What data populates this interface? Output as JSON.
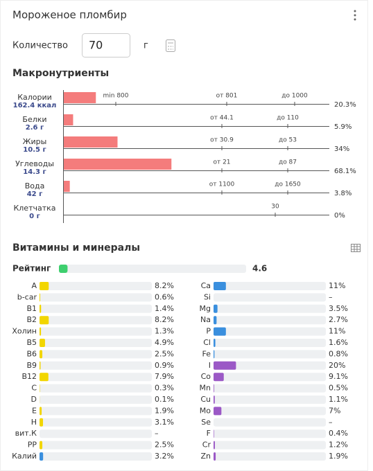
{
  "header": {
    "title": "Мороженое пломбир"
  },
  "quantity": {
    "label": "Количество",
    "value": "70",
    "unit": "г"
  },
  "macros": {
    "title": "Макронутриенты",
    "color": "#f47c7c",
    "rows": [
      {
        "name": "Калории",
        "amount": "162.4 ккал",
        "value": 20.3,
        "value_label": "20.3%",
        "markers": [
          "min 800",
          "от 801",
          "до 1000"
        ]
      },
      {
        "name": "Белки",
        "amount": "2.6 г",
        "value": 5.9,
        "value_label": "5.9%",
        "markers": [
          "от 44.1",
          "до 110"
        ]
      },
      {
        "name": "Жиры",
        "amount": "10.5 г",
        "value": 34,
        "value_label": "34%",
        "markers": [
          "от 30.9",
          "до 53"
        ]
      },
      {
        "name": "Углеводы",
        "amount": "14.3 г",
        "value": 68.1,
        "value_label": "68.1%",
        "markers": [
          "от 21",
          "до 87"
        ]
      },
      {
        "name": "Вода",
        "amount": "42 г",
        "value": 3.8,
        "value_label": "3.8%",
        "markers": [
          "от 1100",
          "до 1650"
        ]
      },
      {
        "name": "Клетчатка",
        "amount": "0 г",
        "value": 0,
        "value_label": "0%",
        "markers": [
          "30"
        ]
      }
    ]
  },
  "vitamins": {
    "title": "Витамины и минералы",
    "rating": {
      "label": "Рейтинг",
      "value": 4.6,
      "color": "#3ecf6e"
    },
    "left": [
      {
        "name": "A",
        "value": 8.2,
        "value_label": "8.2%",
        "color": "#f2d600"
      },
      {
        "name": "b-car",
        "value": 0.6,
        "value_label": "0.6%",
        "color": "#f2d600"
      },
      {
        "name": "B1",
        "value": 1.4,
        "value_label": "1.4%",
        "color": "#f2d600"
      },
      {
        "name": "B2",
        "value": 8.2,
        "value_label": "8.2%",
        "color": "#f2d600"
      },
      {
        "name": "Холин",
        "value": 1.3,
        "value_label": "1.3%",
        "color": "#f2d600"
      },
      {
        "name": "B5",
        "value": 4.9,
        "value_label": "4.9%",
        "color": "#f2d600"
      },
      {
        "name": "B6",
        "value": 2.5,
        "value_label": "2.5%",
        "color": "#f2d600"
      },
      {
        "name": "B9",
        "value": 0.9,
        "value_label": "0.9%",
        "color": "#f2d600"
      },
      {
        "name": "B12",
        "value": 7.9,
        "value_label": "7.9%",
        "color": "#f2d600"
      },
      {
        "name": "C",
        "value": 0.3,
        "value_label": "0.3%",
        "color": "#f2d600"
      },
      {
        "name": "D",
        "value": 0.1,
        "value_label": "0.1%",
        "color": "#f2d600"
      },
      {
        "name": "E",
        "value": 1.9,
        "value_label": "1.9%",
        "color": "#f2d600"
      },
      {
        "name": "H",
        "value": 3.1,
        "value_label": "3.1%",
        "color": "#f2d600"
      },
      {
        "name": "вит.К",
        "value": null,
        "value_label": "–",
        "color": "#f2d600"
      },
      {
        "name": "PP",
        "value": 2.5,
        "value_label": "2.5%",
        "color": "#f2d600"
      },
      {
        "name": "Калий",
        "value": 3.2,
        "value_label": "3.2%",
        "color": "#3a8fde"
      }
    ],
    "right": [
      {
        "name": "Ca",
        "value": 11,
        "value_label": "11%",
        "color": "#3a8fde"
      },
      {
        "name": "Si",
        "value": null,
        "value_label": "–",
        "color": "#3a8fde"
      },
      {
        "name": "Mg",
        "value": 3.5,
        "value_label": "3.5%",
        "color": "#3a8fde"
      },
      {
        "name": "Na",
        "value": 2.7,
        "value_label": "2.7%",
        "color": "#3a8fde"
      },
      {
        "name": "P",
        "value": 11,
        "value_label": "11%",
        "color": "#3a8fde"
      },
      {
        "name": "Cl",
        "value": 1.6,
        "value_label": "1.6%",
        "color": "#3a8fde"
      },
      {
        "name": "Fe",
        "value": 0.8,
        "value_label": "0.8%",
        "color": "#3a8fde"
      },
      {
        "name": "I",
        "value": 20,
        "value_label": "20%",
        "color": "#9b59c6"
      },
      {
        "name": "Co",
        "value": 9.1,
        "value_label": "9.1%",
        "color": "#9b59c6"
      },
      {
        "name": "Mn",
        "value": 0.5,
        "value_label": "0.5%",
        "color": "#9b59c6"
      },
      {
        "name": "Cu",
        "value": 1.1,
        "value_label": "1.1%",
        "color": "#9b59c6"
      },
      {
        "name": "Mo",
        "value": 7,
        "value_label": "7%",
        "color": "#9b59c6"
      },
      {
        "name": "Se",
        "value": null,
        "value_label": "–",
        "color": "#9b59c6"
      },
      {
        "name": "F",
        "value": 0.4,
        "value_label": "0.4%",
        "color": "#9b59c6"
      },
      {
        "name": "Cr",
        "value": 1.2,
        "value_label": "1.2%",
        "color": "#9b59c6"
      },
      {
        "name": "Zn",
        "value": 1.9,
        "value_label": "1.9%",
        "color": "#9b59c6"
      }
    ]
  }
}
